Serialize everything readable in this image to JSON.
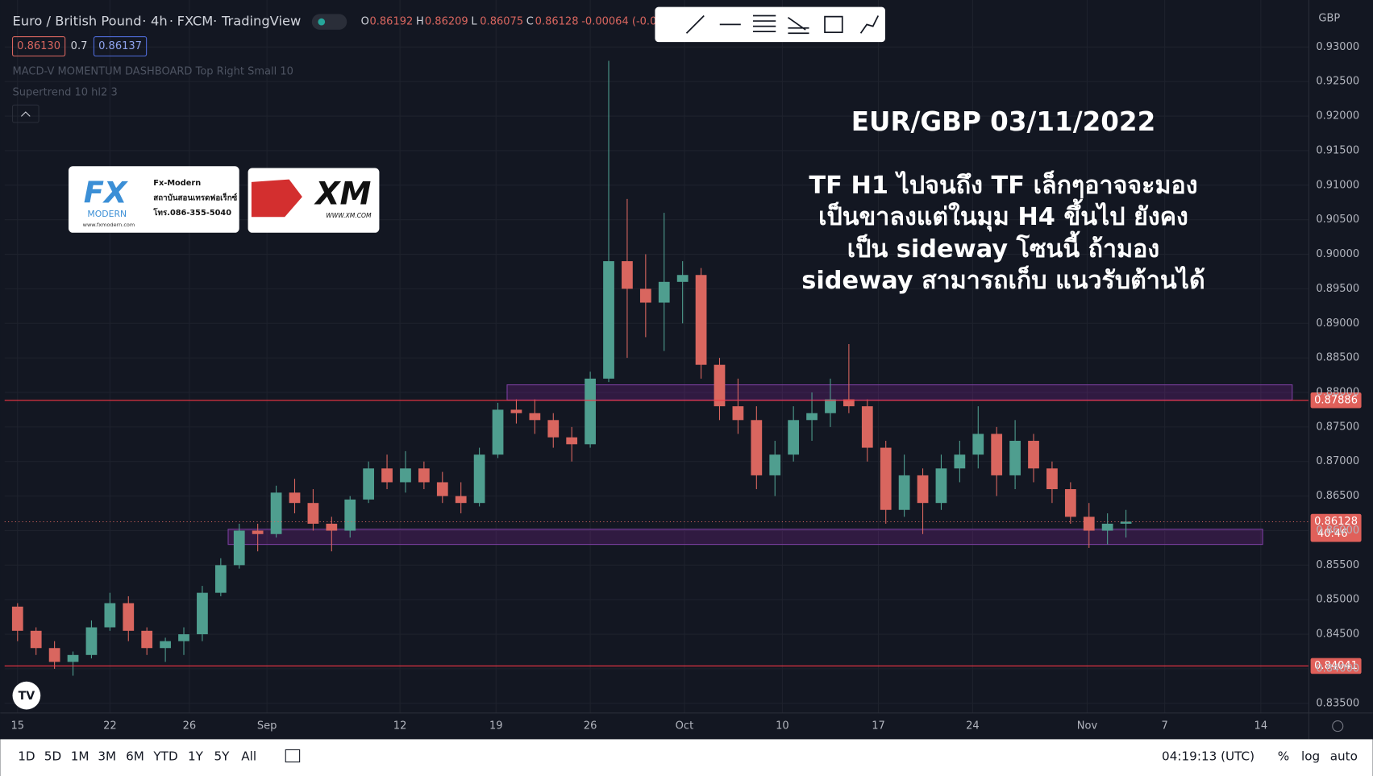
{
  "header": {
    "symbol": "Euro / British Pound",
    "interval": "4h",
    "source": "FXCM",
    "platform": "TradingView",
    "separator": "·",
    "ohlc": [
      {
        "key": "O",
        "value": "0.86192"
      },
      {
        "key": "H",
        "value": "0.86209"
      },
      {
        "key": "L",
        "value": "0.86075"
      },
      {
        "key": "C",
        "value": "0.86128"
      }
    ],
    "change": "-0.00064 (-0.0",
    "bid": "0.86130",
    "spread": "0.7",
    "ask": "0.86137"
  },
  "indicators": [
    "MACD-V MOMENTUM DASHBOARD Top Right Small 10",
    "Supertrend 10 hl2 3"
  ],
  "logos": {
    "fx": {
      "mark": "FX",
      "word": "MODERN",
      "name": "Fx-Modern",
      "subtitle": "สถาบันสอนเทรดฟอเร็กซ์",
      "phone": "โทร.086-355-5040",
      "site": "www.fxmodern.com"
    },
    "xm": {
      "mark": "XM",
      "site": "WWW.XM.COM"
    }
  },
  "annotation": {
    "title": "EUR/GBP 03/11/2022",
    "lines": [
      "TF H1 ไปจนถึง TF เล็กๆอาจจะมอง",
      "เป็นขาลงแต่ในมุม H4 ขึ้นไป ยังคง",
      "เป็น sideway โซนนี้ ถ้ามอง",
      "sideway สามารถเก็บ แนวรับต้านได้"
    ]
  },
  "chart_data": {
    "type": "candlestick",
    "currency": "GBP",
    "up_color": "#4f9e8f",
    "down_color": "#d9665f",
    "candles": [
      {
        "open": 0.849,
        "high": 0.8495,
        "low": 0.844,
        "close": 0.8455
      },
      {
        "open": 0.8455,
        "high": 0.846,
        "low": 0.842,
        "close": 0.843
      },
      {
        "open": 0.843,
        "high": 0.844,
        "low": 0.84,
        "close": 0.841
      },
      {
        "open": 0.841,
        "high": 0.8425,
        "low": 0.839,
        "close": 0.842
      },
      {
        "open": 0.842,
        "high": 0.847,
        "low": 0.8415,
        "close": 0.846
      },
      {
        "open": 0.846,
        "high": 0.851,
        "low": 0.8455,
        "close": 0.8495
      },
      {
        "open": 0.8495,
        "high": 0.8505,
        "low": 0.844,
        "close": 0.8455
      },
      {
        "open": 0.8455,
        "high": 0.846,
        "low": 0.842,
        "close": 0.843
      },
      {
        "open": 0.843,
        "high": 0.8445,
        "low": 0.841,
        "close": 0.844
      },
      {
        "open": 0.844,
        "high": 0.846,
        "low": 0.842,
        "close": 0.845
      },
      {
        "open": 0.845,
        "high": 0.852,
        "low": 0.844,
        "close": 0.851
      },
      {
        "open": 0.851,
        "high": 0.856,
        "low": 0.8505,
        "close": 0.855
      },
      {
        "open": 0.855,
        "high": 0.861,
        "low": 0.8545,
        "close": 0.86
      },
      {
        "open": 0.86,
        "high": 0.861,
        "low": 0.857,
        "close": 0.8595
      },
      {
        "open": 0.8595,
        "high": 0.8665,
        "low": 0.859,
        "close": 0.8655
      },
      {
        "open": 0.8655,
        "high": 0.8675,
        "low": 0.8625,
        "close": 0.864
      },
      {
        "open": 0.864,
        "high": 0.866,
        "low": 0.86,
        "close": 0.861
      },
      {
        "open": 0.861,
        "high": 0.862,
        "low": 0.857,
        "close": 0.86
      },
      {
        "open": 0.86,
        "high": 0.865,
        "low": 0.859,
        "close": 0.8645
      },
      {
        "open": 0.8645,
        "high": 0.87,
        "low": 0.864,
        "close": 0.869
      },
      {
        "open": 0.869,
        "high": 0.871,
        "low": 0.866,
        "close": 0.867
      },
      {
        "open": 0.867,
        "high": 0.8715,
        "low": 0.8655,
        "close": 0.869
      },
      {
        "open": 0.869,
        "high": 0.87,
        "low": 0.866,
        "close": 0.867
      },
      {
        "open": 0.867,
        "high": 0.8685,
        "low": 0.864,
        "close": 0.865
      },
      {
        "open": 0.865,
        "high": 0.867,
        "low": 0.8625,
        "close": 0.864
      },
      {
        "open": 0.864,
        "high": 0.872,
        "low": 0.8635,
        "close": 0.871
      },
      {
        "open": 0.871,
        "high": 0.8785,
        "low": 0.8705,
        "close": 0.8775
      },
      {
        "open": 0.8775,
        "high": 0.879,
        "low": 0.8755,
        "close": 0.877
      },
      {
        "open": 0.877,
        "high": 0.879,
        "low": 0.874,
        "close": 0.876
      },
      {
        "open": 0.876,
        "high": 0.877,
        "low": 0.872,
        "close": 0.8735
      },
      {
        "open": 0.8735,
        "high": 0.875,
        "low": 0.87,
        "close": 0.8725
      },
      {
        "open": 0.8725,
        "high": 0.883,
        "low": 0.872,
        "close": 0.882
      },
      {
        "open": 0.882,
        "high": 0.928,
        "low": 0.8815,
        "close": 0.899
      },
      {
        "open": 0.899,
        "high": 0.908,
        "low": 0.885,
        "close": 0.895
      },
      {
        "open": 0.895,
        "high": 0.9,
        "low": 0.888,
        "close": 0.893
      },
      {
        "open": 0.893,
        "high": 0.906,
        "low": 0.886,
        "close": 0.896
      },
      {
        "open": 0.896,
        "high": 0.899,
        "low": 0.89,
        "close": 0.897
      },
      {
        "open": 0.897,
        "high": 0.898,
        "low": 0.882,
        "close": 0.884
      },
      {
        "open": 0.884,
        "high": 0.885,
        "low": 0.876,
        "close": 0.878
      },
      {
        "open": 0.878,
        "high": 0.882,
        "low": 0.874,
        "close": 0.876
      },
      {
        "open": 0.876,
        "high": 0.878,
        "low": 0.866,
        "close": 0.868
      },
      {
        "open": 0.868,
        "high": 0.873,
        "low": 0.865,
        "close": 0.871
      },
      {
        "open": 0.871,
        "high": 0.878,
        "low": 0.87,
        "close": 0.876
      },
      {
        "open": 0.876,
        "high": 0.88,
        "low": 0.873,
        "close": 0.877
      },
      {
        "open": 0.877,
        "high": 0.882,
        "low": 0.875,
        "close": 0.879
      },
      {
        "open": 0.879,
        "high": 0.887,
        "low": 0.877,
        "close": 0.878
      },
      {
        "open": 0.878,
        "high": 0.879,
        "low": 0.87,
        "close": 0.872
      },
      {
        "open": 0.872,
        "high": 0.873,
        "low": 0.861,
        "close": 0.863
      },
      {
        "open": 0.863,
        "high": 0.871,
        "low": 0.862,
        "close": 0.868
      },
      {
        "open": 0.868,
        "high": 0.869,
        "low": 0.8595,
        "close": 0.864
      },
      {
        "open": 0.864,
        "high": 0.871,
        "low": 0.863,
        "close": 0.869
      },
      {
        "open": 0.869,
        "high": 0.873,
        "low": 0.867,
        "close": 0.871
      },
      {
        "open": 0.871,
        "high": 0.878,
        "low": 0.869,
        "close": 0.874
      },
      {
        "open": 0.874,
        "high": 0.875,
        "low": 0.865,
        "close": 0.868
      },
      {
        "open": 0.868,
        "high": 0.876,
        "low": 0.866,
        "close": 0.873
      },
      {
        "open": 0.873,
        "high": 0.874,
        "low": 0.867,
        "close": 0.869
      },
      {
        "open": 0.869,
        "high": 0.87,
        "low": 0.864,
        "close": 0.866
      },
      {
        "open": 0.866,
        "high": 0.867,
        "low": 0.861,
        "close": 0.862
      },
      {
        "open": 0.862,
        "high": 0.864,
        "low": 0.8575,
        "close": 0.86
      },
      {
        "open": 0.86,
        "high": 0.8625,
        "low": 0.858,
        "close": 0.861
      },
      {
        "open": 0.861,
        "high": 0.863,
        "low": 0.859,
        "close": 0.8613
      }
    ],
    "xlim": [
      -0.7,
      69.9
    ],
    "xticks": [
      {
        "value": 0,
        "label": "15"
      },
      {
        "value": 5,
        "label": "22"
      },
      {
        "value": 9.3,
        "label": "26"
      },
      {
        "value": 13.5,
        "label": "Sep"
      },
      {
        "value": 20.7,
        "label": "12"
      },
      {
        "value": 25.9,
        "label": "19"
      },
      {
        "value": 31,
        "label": "26"
      },
      {
        "value": 36.1,
        "label": "Oct"
      },
      {
        "value": 41.4,
        "label": "10"
      },
      {
        "value": 46.6,
        "label": "17"
      },
      {
        "value": 51.7,
        "label": "24"
      },
      {
        "value": 57.9,
        "label": "Nov"
      },
      {
        "value": 62.1,
        "label": "7"
      },
      {
        "value": 67.3,
        "label": "14"
      }
    ],
    "ylim": [
      0.8336,
      0.9368
    ],
    "yticks": [
      {
        "value": 0.835,
        "label": "0.83500"
      },
      {
        "value": 0.84,
        "label": "0.84000"
      },
      {
        "value": 0.845,
        "label": "0.84500"
      },
      {
        "value": 0.85,
        "label": "0.85000"
      },
      {
        "value": 0.855,
        "label": "0.85500"
      },
      {
        "value": 0.86,
        "label": "0.86000"
      },
      {
        "value": 0.865,
        "label": "0.86500"
      },
      {
        "value": 0.87,
        "label": "0.87000"
      },
      {
        "value": 0.875,
        "label": "0.87500"
      },
      {
        "value": 0.88,
        "label": "0.88000"
      },
      {
        "value": 0.885,
        "label": "0.88500"
      },
      {
        "value": 0.89,
        "label": "0.89000"
      },
      {
        "value": 0.895,
        "label": "0.89500"
      },
      {
        "value": 0.9,
        "label": "0.90000"
      },
      {
        "value": 0.905,
        "label": "0.90500"
      },
      {
        "value": 0.91,
        "label": "0.91000"
      },
      {
        "value": 0.915,
        "label": "0.91500"
      },
      {
        "value": 0.92,
        "label": "0.92000"
      },
      {
        "value": 0.925,
        "label": "0.92500"
      },
      {
        "value": 0.93,
        "label": "0.93000"
      }
    ],
    "grid": true,
    "hlines": [
      {
        "value": 0.87886,
        "label": "0.87886"
      },
      {
        "value": 0.84041,
        "label": "0.84041"
      }
    ],
    "zones": [
      {
        "from": 26.5,
        "to": 69,
        "low": 0.8789,
        "high": 0.8811
      },
      {
        "from": 11.4,
        "to": 67.4,
        "low": 0.858,
        "high": 0.8602
      }
    ],
    "last_price": {
      "value": 0.86128,
      "label": "0.86128",
      "countdown": "40:46"
    }
  },
  "footer": {
    "ranges": [
      "1D",
      "5D",
      "1M",
      "3M",
      "6M",
      "YTD",
      "1Y",
      "5Y",
      "All"
    ],
    "clock": "04:19:13 (UTC)",
    "options": [
      "%",
      "log",
      "auto"
    ]
  }
}
